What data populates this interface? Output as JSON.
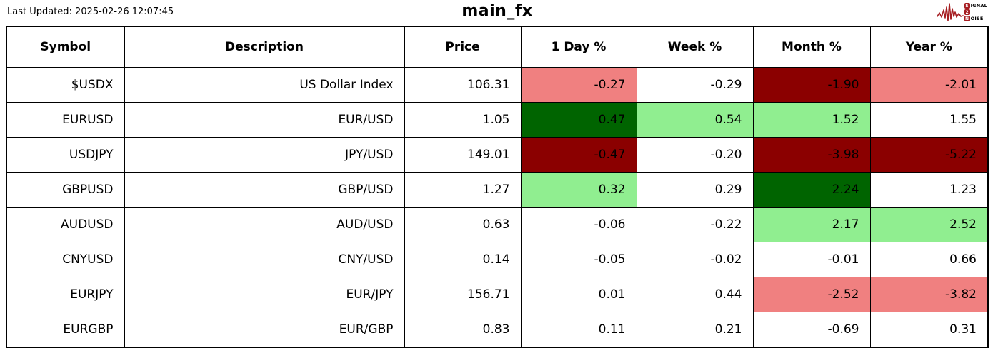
{
  "header": {
    "last_updated": "Last Updated: 2025-02-26 12:07:45",
    "title": "main_fx",
    "logo": {
      "wave_color": "#a61e22",
      "lines": [
        {
          "boxed": "S",
          "rest": "IGNAL"
        },
        {
          "boxed": "2",
          "rest": ""
        },
        {
          "boxed": "N",
          "rest": "OISE"
        }
      ]
    }
  },
  "colors": {
    "none": "#ffffff",
    "neg_mild": "#f08080",
    "neg_strong": "#8b0000",
    "pos_mild": "#90ee90",
    "pos_strong": "#006400"
  },
  "table": {
    "columns": [
      "Symbol",
      "Description",
      "Price",
      "1 Day %",
      "Week %",
      "Month %",
      "Year %"
    ],
    "rows": [
      {
        "symbol": "$USDX",
        "description": "US Dollar Index",
        "price": "106.31",
        "changes": [
          {
            "value": "-0.27",
            "bg": "neg_mild"
          },
          {
            "value": "-0.29",
            "bg": "none"
          },
          {
            "value": "-1.90",
            "bg": "neg_strong"
          },
          {
            "value": "-2.01",
            "bg": "neg_mild"
          }
        ]
      },
      {
        "symbol": "EURUSD",
        "description": "EUR/USD",
        "price": "1.05",
        "changes": [
          {
            "value": "0.47",
            "bg": "pos_strong"
          },
          {
            "value": "0.54",
            "bg": "pos_mild"
          },
          {
            "value": "1.52",
            "bg": "pos_mild"
          },
          {
            "value": "1.55",
            "bg": "none"
          }
        ]
      },
      {
        "symbol": "USDJPY",
        "description": "JPY/USD",
        "price": "149.01",
        "changes": [
          {
            "value": "-0.47",
            "bg": "neg_strong"
          },
          {
            "value": "-0.20",
            "bg": "none"
          },
          {
            "value": "-3.98",
            "bg": "neg_strong"
          },
          {
            "value": "-5.22",
            "bg": "neg_strong"
          }
        ]
      },
      {
        "symbol": "GBPUSD",
        "description": "GBP/USD",
        "price": "1.27",
        "changes": [
          {
            "value": "0.32",
            "bg": "pos_mild"
          },
          {
            "value": "0.29",
            "bg": "none"
          },
          {
            "value": "2.24",
            "bg": "pos_strong"
          },
          {
            "value": "1.23",
            "bg": "none"
          }
        ]
      },
      {
        "symbol": "AUDUSD",
        "description": "AUD/USD",
        "price": "0.63",
        "changes": [
          {
            "value": "-0.06",
            "bg": "none"
          },
          {
            "value": "-0.22",
            "bg": "none"
          },
          {
            "value": "2.17",
            "bg": "pos_mild"
          },
          {
            "value": "2.52",
            "bg": "pos_mild"
          }
        ]
      },
      {
        "symbol": "CNYUSD",
        "description": "CNY/USD",
        "price": "0.14",
        "changes": [
          {
            "value": "-0.05",
            "bg": "none"
          },
          {
            "value": "-0.02",
            "bg": "none"
          },
          {
            "value": "-0.01",
            "bg": "none"
          },
          {
            "value": "0.66",
            "bg": "none"
          }
        ]
      },
      {
        "symbol": "EURJPY",
        "description": "EUR/JPY",
        "price": "156.71",
        "changes": [
          {
            "value": "0.01",
            "bg": "none"
          },
          {
            "value": "0.44",
            "bg": "none"
          },
          {
            "value": "-2.52",
            "bg": "neg_mild"
          },
          {
            "value": "-3.82",
            "bg": "neg_mild"
          }
        ]
      },
      {
        "symbol": "EURGBP",
        "description": "EUR/GBP",
        "price": "0.83",
        "changes": [
          {
            "value": "0.11",
            "bg": "none"
          },
          {
            "value": "0.21",
            "bg": "none"
          },
          {
            "value": "-0.69",
            "bg": "none"
          },
          {
            "value": "0.31",
            "bg": "none"
          }
        ]
      }
    ]
  },
  "chart_data": {
    "type": "table",
    "title": "main_fx",
    "columns": [
      "Symbol",
      "Description",
      "Price",
      "1 Day %",
      "Week %",
      "Month %",
      "Year %"
    ],
    "rows": [
      [
        "$USDX",
        "US Dollar Index",
        106.31,
        -0.27,
        -0.29,
        -1.9,
        -2.01
      ],
      [
        "EURUSD",
        "EUR/USD",
        1.05,
        0.47,
        0.54,
        1.52,
        1.55
      ],
      [
        "USDJPY",
        "JPY/USD",
        149.01,
        -0.47,
        -0.2,
        -3.98,
        -5.22
      ],
      [
        "GBPUSD",
        "GBP/USD",
        1.27,
        0.32,
        0.29,
        2.24,
        1.23
      ],
      [
        "AUDUSD",
        "AUD/USD",
        0.63,
        -0.06,
        -0.22,
        2.17,
        2.52
      ],
      [
        "CNYUSD",
        "CNY/USD",
        0.14,
        -0.05,
        -0.02,
        -0.01,
        0.66
      ],
      [
        "EURJPY",
        "EUR/JPY",
        156.71,
        0.01,
        0.44,
        -2.52,
        -3.82
      ],
      [
        "EURGBP",
        "EUR/GBP",
        0.83,
        0.11,
        0.21,
        -0.69,
        0.31
      ]
    ],
    "cell_color_legend": {
      "dark_green": "strong positive",
      "light_green": "mild positive",
      "dark_red": "strong negative",
      "light_coral": "mild negative",
      "white": "neutral"
    }
  }
}
